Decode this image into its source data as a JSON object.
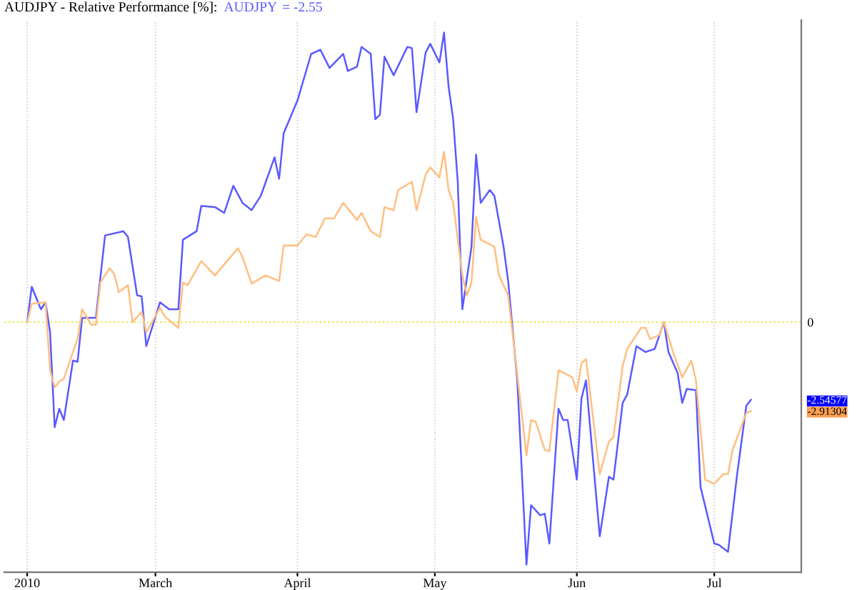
{
  "chart_data": {
    "type": "line",
    "title": "AUDJPY - Relative Performance [%]:",
    "annotations": [
      "= -2.55"
    ],
    "xlim": [
      "2010-01-27",
      "2010-07-20"
    ],
    "xticks": [
      {
        "value": "2010-02-01",
        "label": "2010"
      },
      {
        "value": "2010-03-01",
        "label": "March"
      },
      {
        "value": "2010-04-01",
        "label": "April"
      },
      {
        "value": "2010-05-01",
        "label": "May"
      },
      {
        "value": "2010-06-01",
        "label": "Jun"
      },
      {
        "value": "2010-07-01",
        "label": "Jul"
      }
    ],
    "ylim": [
      -8.2,
      9.9
    ],
    "yticks": [
      0,
      -2.54577,
      -2.91304
    ],
    "grid": "x",
    "legend": false,
    "line_style": "solid",
    "ref_lines": [
      {
        "axis": "y",
        "value": 0,
        "color": "#e8e84a",
        "line_style": "dotted"
      }
    ],
    "series": [
      {
        "name": "AUDJPY",
        "color": "#5a5aff",
        "x": [
          "2010-02-01",
          "2010-02-02",
          "2010-02-04",
          "2010-02-05",
          "2010-02-06",
          "2010-02-07",
          "2010-02-08",
          "2010-02-09",
          "2010-02-11",
          "2010-02-12",
          "2010-02-13",
          "2010-02-16",
          "2010-02-18",
          "2010-02-22",
          "2010-02-23",
          "2010-02-25",
          "2010-02-26",
          "2010-02-27",
          "2010-03-02",
          "2010-03-04",
          "2010-03-06",
          "2010-03-07",
          "2010-03-10",
          "2010-03-11",
          "2010-03-14",
          "2010-03-16",
          "2010-03-18",
          "2010-03-20",
          "2010-03-22",
          "2010-03-24",
          "2010-03-27",
          "2010-03-28",
          "2010-03-29",
          "2010-04-01",
          "2010-04-04",
          "2010-04-06",
          "2010-04-08",
          "2010-04-11",
          "2010-04-12",
          "2010-04-14",
          "2010-04-15",
          "2010-04-17",
          "2010-04-18",
          "2010-04-19",
          "2010-04-20",
          "2010-04-22",
          "2010-04-25",
          "2010-04-26",
          "2010-04-27",
          "2010-04-29",
          "2010-04-30",
          "2010-05-02",
          "2010-05-03",
          "2010-05-04",
          "2010-05-05",
          "2010-05-06",
          "2010-05-07",
          "2010-05-09",
          "2010-05-10",
          "2010-05-11",
          "2010-05-13",
          "2010-05-14",
          "2010-05-16",
          "2010-05-17",
          "2010-05-19",
          "2010-05-21",
          "2010-05-22",
          "2010-05-24",
          "2010-05-25",
          "2010-05-26",
          "2010-05-28",
          "2010-05-29",
          "2010-05-30",
          "2010-06-01",
          "2010-06-02",
          "2010-06-03",
          "2010-06-06",
          "2010-06-08",
          "2010-06-09",
          "2010-06-11",
          "2010-06-12",
          "2010-06-14",
          "2010-06-16",
          "2010-06-18",
          "2010-06-20",
          "2010-06-21",
          "2010-06-23",
          "2010-06-24",
          "2010-06-25",
          "2010-06-27",
          "2010-06-28",
          "2010-07-01",
          "2010-07-02",
          "2010-07-04",
          "2010-07-06",
          "2010-07-08",
          "2010-07-09"
        ],
        "values": [
          0,
          1.16,
          0.42,
          0.65,
          -0.33,
          -3.44,
          -2.84,
          -3.21,
          -1.26,
          -1.3,
          0.14,
          0.14,
          2.84,
          2.98,
          2.79,
          0.88,
          0.84,
          -0.79,
          0.65,
          0.42,
          0.42,
          2.7,
          2.98,
          3.81,
          3.77,
          3.58,
          4.47,
          3.91,
          3.67,
          4.14,
          5.4,
          4.7,
          6.19,
          7.26,
          8.79,
          8.93,
          8.33,
          8.79,
          8.23,
          8.37,
          9.02,
          8.79,
          6.65,
          6.79,
          8.7,
          8.09,
          9.02,
          8.98,
          6.88,
          8.84,
          9.12,
          8.51,
          9.49,
          7.72,
          6.65,
          4.6,
          0.42,
          2.47,
          5.49,
          3.91,
          4.33,
          4.14,
          2.47,
          1.35,
          -1.91,
          -7.95,
          -6.0,
          -6.33,
          -6.28,
          -7.26,
          -2.84,
          -3.21,
          -3.21,
          -5.16,
          -2.51,
          -1.91,
          -7.02,
          -5.07,
          -5.16,
          -2.65,
          -2.37,
          -0.79,
          -0.98,
          -0.88,
          0,
          -0.98,
          -1.67,
          -2.65,
          -2.19,
          -2.23,
          -5.4,
          -7.26,
          -7.3,
          -7.53,
          -4.98,
          -2.74,
          -2.54577
        ]
      },
      {
        "color": "#ffbf80",
        "x": [
          "2010-02-01",
          "2010-02-02",
          "2010-02-05",
          "2010-02-06",
          "2010-02-07",
          "2010-02-08",
          "2010-02-09",
          "2010-02-11",
          "2010-02-12",
          "2010-02-13",
          "2010-02-15",
          "2010-02-16",
          "2010-02-17",
          "2010-02-19",
          "2010-02-20",
          "2010-02-21",
          "2010-02-23",
          "2010-02-24",
          "2010-02-26",
          "2010-02-27",
          "2010-03-02",
          "2010-03-03",
          "2010-03-06",
          "2010-03-07",
          "2010-03-08",
          "2010-03-11",
          "2010-03-14",
          "2010-03-19",
          "2010-03-20",
          "2010-03-22",
          "2010-03-25",
          "2010-03-28",
          "2010-03-29",
          "2010-04-01",
          "2010-04-03",
          "2010-04-05",
          "2010-04-07",
          "2010-04-09",
          "2010-04-11",
          "2010-04-14",
          "2010-04-15",
          "2010-04-17",
          "2010-04-19",
          "2010-04-20",
          "2010-04-22",
          "2010-04-23",
          "2010-04-26",
          "2010-04-27",
          "2010-04-29",
          "2010-04-30",
          "2010-05-02",
          "2010-05-03",
          "2010-05-04",
          "2010-05-05",
          "2010-05-07",
          "2010-05-08",
          "2010-05-09",
          "2010-05-10",
          "2010-05-11",
          "2010-05-14",
          "2010-05-15",
          "2010-05-17",
          "2010-05-19",
          "2010-05-21",
          "2010-05-22",
          "2010-05-23",
          "2010-05-25",
          "2010-05-26",
          "2010-05-28",
          "2010-05-31",
          "2010-06-01",
          "2010-06-02",
          "2010-06-03",
          "2010-06-06",
          "2010-06-08",
          "2010-06-09",
          "2010-06-11",
          "2010-06-12",
          "2010-06-15",
          "2010-06-16",
          "2010-06-17",
          "2010-06-19",
          "2010-06-20",
          "2010-06-22",
          "2010-06-24",
          "2010-06-26",
          "2010-06-27",
          "2010-06-29",
          "2010-07-01",
          "2010-07-03",
          "2010-07-04",
          "2010-07-05",
          "2010-07-08",
          "2010-07-09"
        ],
        "values": [
          0,
          0.6,
          0.65,
          -1.58,
          -2.14,
          -1.95,
          -1.86,
          -0.98,
          -0.56,
          0.42,
          -0.09,
          -0.09,
          1.3,
          1.77,
          1.58,
          0.98,
          1.21,
          0,
          0.33,
          -0.33,
          0.47,
          0.19,
          -0.19,
          1.3,
          1.21,
          2.0,
          1.53,
          2.42,
          2.14,
          1.26,
          1.53,
          1.35,
          2.51,
          2.51,
          2.88,
          2.79,
          3.4,
          3.4,
          3.91,
          3.35,
          3.58,
          2.98,
          2.79,
          3.77,
          3.67,
          4.33,
          4.6,
          3.67,
          4.84,
          5.07,
          4.74,
          5.58,
          4.33,
          3.91,
          1.53,
          0.88,
          1.3,
          3.44,
          2.7,
          2.47,
          1.53,
          0.88,
          -1.72,
          -4.37,
          -3.21,
          -3.26,
          -4.19,
          -4.23,
          -1.58,
          -1.81,
          -2.28,
          -1.35,
          -1.21,
          -4.98,
          -3.91,
          -3.77,
          -1.44,
          -0.88,
          -0.19,
          -0.19,
          -0.56,
          -0.42,
          0,
          -0.98,
          -1.81,
          -1.26,
          -1.91,
          -5.16,
          -5.3,
          -4.98,
          -4.98,
          -4.19,
          -2.98,
          -2.91304
        ]
      }
    ]
  }
}
